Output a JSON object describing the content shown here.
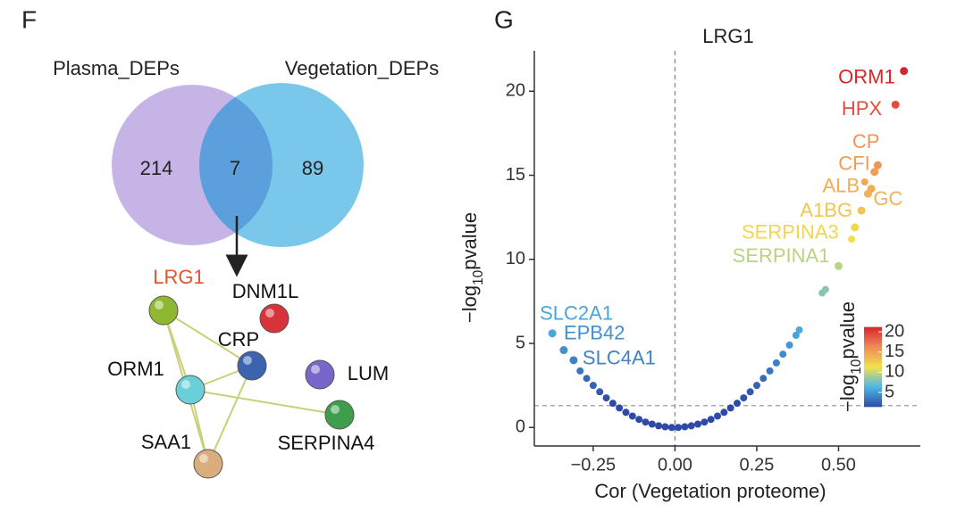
{
  "panels": [
    "F",
    "G"
  ],
  "network": {
    "nodes": [
      {
        "label": "LRG1",
        "color": "#8fb832",
        "label_color": "#e4572e"
      },
      {
        "label": "DNM1L",
        "color": "#d8323a",
        "label_color": "#111111"
      },
      {
        "label": "CRP",
        "color": "#3b63b0",
        "label_color": "#111111"
      },
      {
        "label": "ORM1",
        "color": "#6ad0d8",
        "label_color": "#111111"
      },
      {
        "label": "LUM",
        "color": "#7a66c9",
        "label_color": "#111111"
      },
      {
        "label": "SAA1",
        "color": "#d9ae7c",
        "label_color": "#111111"
      },
      {
        "label": "SERPINA4",
        "color": "#3f9e4c",
        "label_color": "#111111"
      }
    ]
  },
  "chart_data": [
    {
      "type": "venn",
      "sets": [
        {
          "name": "Plasma_DEPs",
          "color": "#c6b4e6",
          "value": 214
        },
        {
          "name": "Vegetation_DEPs",
          "color": "#62bde6",
          "value": 89
        }
      ],
      "intersection": 7,
      "intersection_color": "#5b9fdc"
    },
    {
      "type": "scatter",
      "title": "LRG1",
      "x_label": "Cor (Vegetation proteome)",
      "y_label": [
        "−log",
        "10",
        "pvalue"
      ],
      "xlim": [
        -0.43,
        0.75
      ],
      "ylim": [
        -1.1,
        22.4
      ],
      "xticks": [
        {
          "value": -0.25,
          "label": "−0.25"
        },
        {
          "value": 0,
          "label": "0.00"
        },
        {
          "value": 0.25,
          "label": "0.25"
        },
        {
          "value": 0.5,
          "label": "0.50"
        }
      ],
      "yticks": [
        0,
        5,
        10,
        15,
        20
      ],
      "vline": 0,
      "hline": 1.3,
      "colorbar": {
        "title": [
          "−log",
          "10",
          "pvalue"
        ],
        "lim": [
          1.4,
          21.2
        ],
        "ticks": [
          5,
          10,
          15,
          20
        ],
        "colors": [
          "#2e4aa6",
          "#4db7e6",
          "#f2e14c",
          "#f08a5a",
          "#d7262b"
        ]
      },
      "x": [
        0.7,
        0.674,
        0.62,
        0.61,
        0.6,
        0.59,
        0.57,
        0.55,
        0.5,
        -0.375,
        -0.34,
        -0.31,
        0.54,
        0.46,
        0.45,
        0.58,
        -0.29,
        -0.27,
        -0.25,
        -0.23,
        -0.21,
        -0.19,
        -0.17,
        -0.15,
        -0.13,
        -0.11,
        -0.09,
        -0.07,
        -0.05,
        -0.03,
        -0.01,
        0.01,
        0.03,
        0.05,
        0.07,
        0.09,
        0.11,
        0.13,
        0.15,
        0.17,
        0.19,
        0.21,
        0.23,
        0.25,
        0.27,
        0.29,
        0.31,
        0.33,
        0.35,
        0.37,
        0.38
      ],
      "y": [
        21.2,
        19.2,
        15.6,
        15.2,
        14.2,
        13.9,
        12.9,
        11.9,
        9.6,
        5.6,
        4.6,
        4.0,
        11.2,
        8.2,
        8.0,
        14.6,
        3.36,
        2.92,
        2.5,
        2.12,
        1.76,
        1.44,
        1.16,
        0.9,
        0.68,
        0.48,
        0.32,
        0.2,
        0.1,
        0.04,
        0.0,
        0.0,
        0.04,
        0.1,
        0.2,
        0.32,
        0.48,
        0.68,
        0.9,
        1.16,
        1.44,
        1.76,
        2.12,
        2.5,
        2.92,
        3.36,
        3.84,
        4.36,
        4.9,
        5.48,
        5.8
      ],
      "names": [
        "ORM1",
        "HPX",
        "CP",
        "CFI",
        "ALB",
        "GC",
        "A1BG",
        "SERPINA3",
        "SERPINA1",
        "SLC2A1",
        "EPB42",
        "SLC4A1",
        null,
        null,
        null,
        null,
        null,
        null,
        null,
        null,
        null,
        null,
        null,
        null,
        null,
        null,
        null,
        null,
        null,
        null,
        null,
        null,
        null,
        null,
        null,
        null,
        null,
        null,
        null,
        null,
        null,
        null,
        null,
        null,
        null,
        null,
        null,
        null,
        null,
        null,
        null
      ]
    }
  ]
}
